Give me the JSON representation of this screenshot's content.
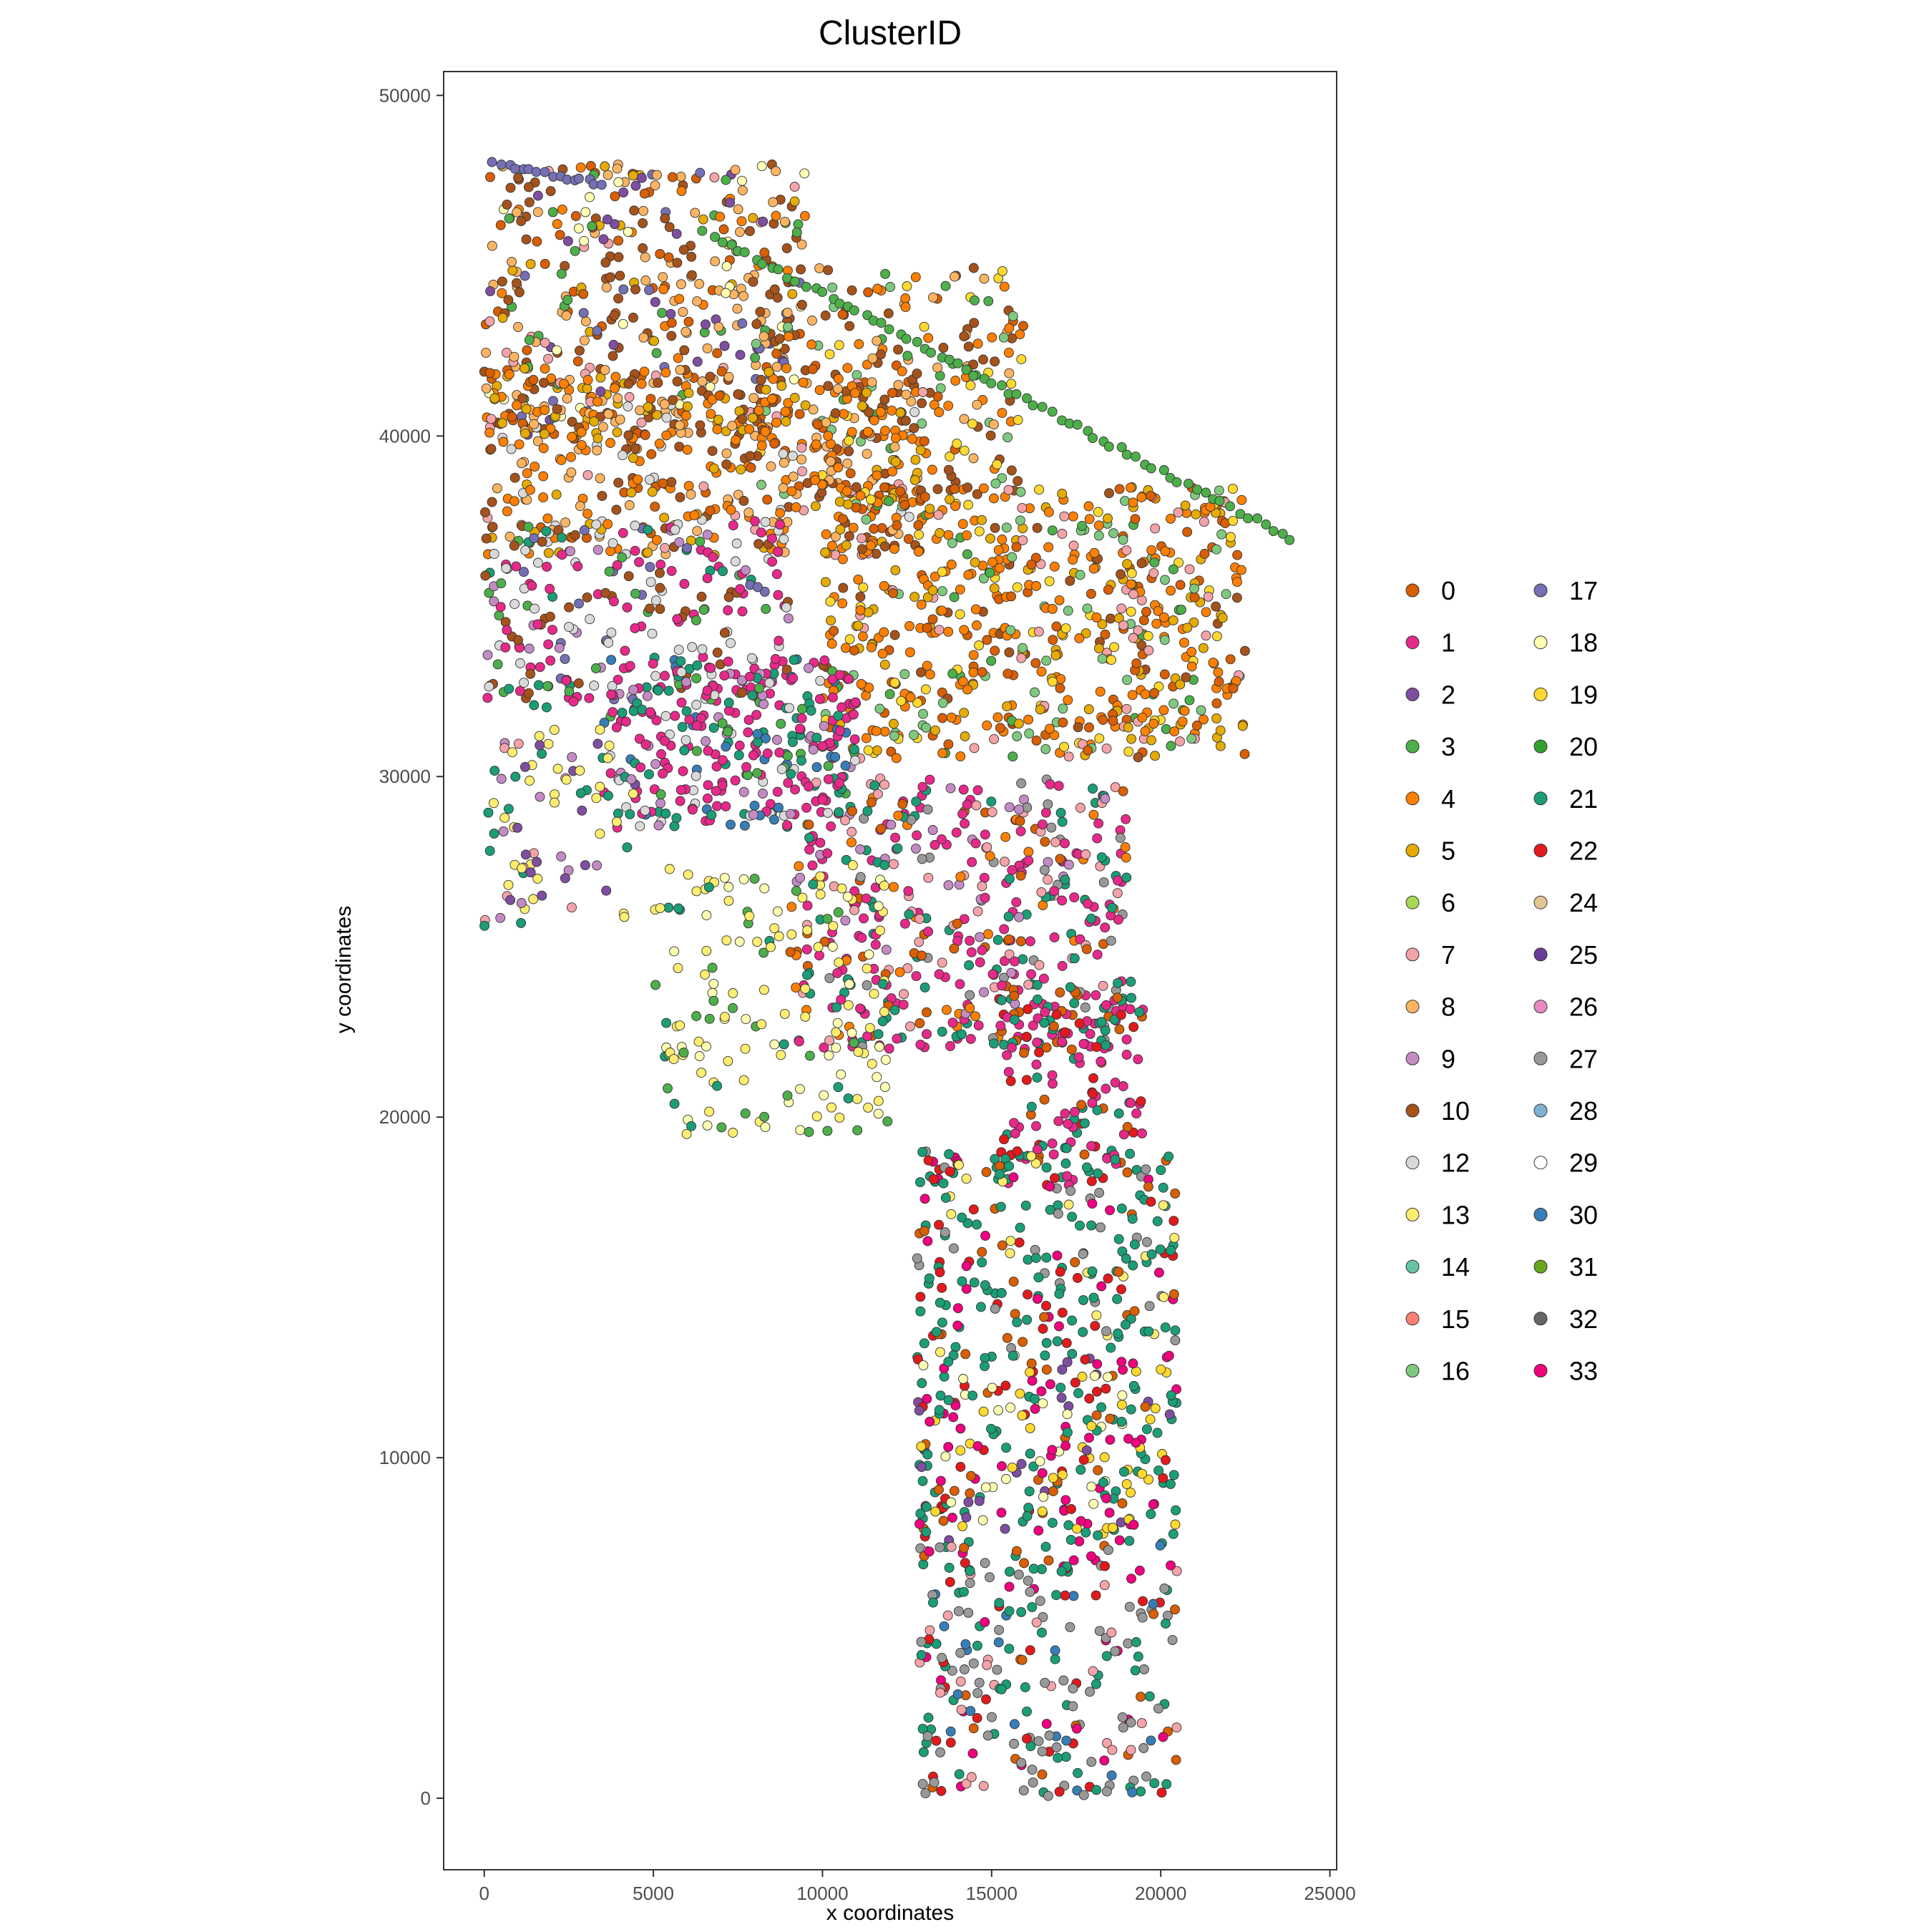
{
  "chart_data": {
    "type": "scatter",
    "title": "ClusterID",
    "xlabel": "x coordinates",
    "ylabel": "y coordinates",
    "xlim": [
      -1200,
      25200
    ],
    "ylim": [
      -2100,
      50700
    ],
    "x_ticks": [
      0,
      5000,
      10000,
      15000,
      20000,
      25000
    ],
    "y_ticks": [
      0,
      10000,
      20000,
      30000,
      40000,
      50000
    ],
    "grid": false,
    "legend_position": "right",
    "legend_columns": 2,
    "marker": "filled circle with dark outline",
    "clusters": [
      "0",
      "1",
      "2",
      "3",
      "4",
      "5",
      "6",
      "7",
      "8",
      "9",
      "10",
      "12",
      "13",
      "14",
      "15",
      "16",
      "17",
      "18",
      "19",
      "20",
      "21",
      "22",
      "24",
      "25",
      "26",
      "27",
      "28",
      "29",
      "30",
      "31",
      "32",
      "33"
    ],
    "colors": {
      "0": "#D95F02",
      "1": "#E7298A",
      "2": "#7F4EA0",
      "3": "#4DAF4A",
      "4": "#FF7F00",
      "5": "#E6AB02",
      "6": "#A6D854",
      "7": "#F4A3A8",
      "8": "#FDB462",
      "9": "#C38BC3",
      "10": "#A6521B",
      "12": "#D9D9D9",
      "13": "#FFED6F",
      "14": "#66C2A5",
      "15": "#FB8072",
      "16": "#7FC97F",
      "17": "#7570B3",
      "18": "#FFFFB3",
      "19": "#FFD92F",
      "20": "#33A02C",
      "21": "#1B9E77",
      "22": "#E31A1C",
      "24": "#E5C494",
      "25": "#6A3D9A",
      "26": "#E78AC3",
      "27": "#999999",
      "28": "#80B1D3",
      "29": "#FFFFFF",
      "30": "#377EB8",
      "31": "#66A61E",
      "32": "#666666",
      "33": "#F0027F"
    },
    "regions": [
      {
        "x": [
          0,
          9500
        ],
        "y": [
          40000,
          48000
        ],
        "n": 420,
        "clusters": {
          "10": 3,
          "8": 3,
          "0": 2,
          "4": 1,
          "3": 1,
          "17": 1,
          "5": 1,
          "7": 1,
          "2": 1,
          "18": 1
        }
      },
      {
        "x": [
          8000,
          16000
        ],
        "y": [
          38000,
          45000
        ],
        "n": 220,
        "clusters": {
          "10": 3,
          "8": 2,
          "4": 2,
          "0": 1,
          "3": 1,
          "16": 1,
          "19": 1
        }
      },
      {
        "x": [
          0,
          13000
        ],
        "y": [
          36500,
          42000
        ],
        "n": 480,
        "clusters": {
          "4": 4,
          "8": 2,
          "10": 2,
          "5": 2,
          "0": 1,
          "12": 1,
          "7": 1
        }
      },
      {
        "x": [
          10000,
          22500
        ],
        "y": [
          30500,
          38500
        ],
        "n": 650,
        "clusters": {
          "4": 5,
          "5": 2,
          "0": 2,
          "10": 1,
          "7": 1,
          "3": 1,
          "16": 1,
          "19": 1
        }
      },
      {
        "x": [
          0,
          9000
        ],
        "y": [
          32000,
          37500
        ],
        "n": 260,
        "clusters": {
          "1": 4,
          "10": 2,
          "12": 2,
          "3": 1,
          "21": 1,
          "9": 1,
          "17": 1
        }
      },
      {
        "x": [
          3500,
          11000
        ],
        "y": [
          28500,
          33500
        ],
        "n": 300,
        "clusters": {
          "1": 5,
          "21": 2,
          "12": 1,
          "9": 1,
          "30": 1,
          "3": 1
        }
      },
      {
        "x": [
          9000,
          19000
        ],
        "y": [
          22000,
          30000
        ],
        "n": 450,
        "clusters": {
          "1": 5,
          "21": 2,
          "9": 1,
          "0": 1,
          "27": 1,
          "4": 1,
          "7": 1
        }
      },
      {
        "x": [
          15000,
          19500
        ],
        "y": [
          18000,
          24000
        ],
        "n": 160,
        "clusters": {
          "1": 3,
          "21": 2,
          "0": 1,
          "22": 1
        }
      },
      {
        "x": [
          5000,
          12000
        ],
        "y": [
          19500,
          27500
        ],
        "n": 160,
        "clusters": {
          "13": 4,
          "18": 2,
          "3": 1,
          "21": 1
        }
      },
      {
        "x": [
          0,
          4500
        ],
        "y": [
          25500,
          31500
        ],
        "n": 80,
        "clusters": {
          "13": 2,
          "2": 1,
          "7": 1,
          "9": 1,
          "21": 1
        }
      },
      {
        "x": [
          12800,
          20500
        ],
        "y": [
          13000,
          19000
        ],
        "n": 230,
        "clusters": {
          "21": 4,
          "22": 1,
          "27": 1,
          "13": 1,
          "0": 1,
          "33": 1
        }
      },
      {
        "x": [
          12800,
          20500
        ],
        "y": [
          7500,
          13000
        ],
        "n": 270,
        "clusters": {
          "21": 3,
          "33": 2,
          "22": 1,
          "0": 1,
          "18": 1,
          "19": 1,
          "2": 1
        }
      },
      {
        "x": [
          12800,
          20500
        ],
        "y": [
          0,
          7500
        ],
        "n": 260,
        "clusters": {
          "21": 3,
          "27": 3,
          "0": 1,
          "22": 1,
          "30": 1,
          "7": 1,
          "33": 1
        }
      }
    ],
    "edge_series": [
      {
        "cluster": "3",
        "x": [
          6500,
          23800
        ],
        "y": [
          46000,
          37000
        ],
        "n": 70
      },
      {
        "cluster": "17",
        "x": [
          300,
          3500
        ],
        "y": [
          48000,
          47400
        ],
        "n": 16
      }
    ]
  }
}
